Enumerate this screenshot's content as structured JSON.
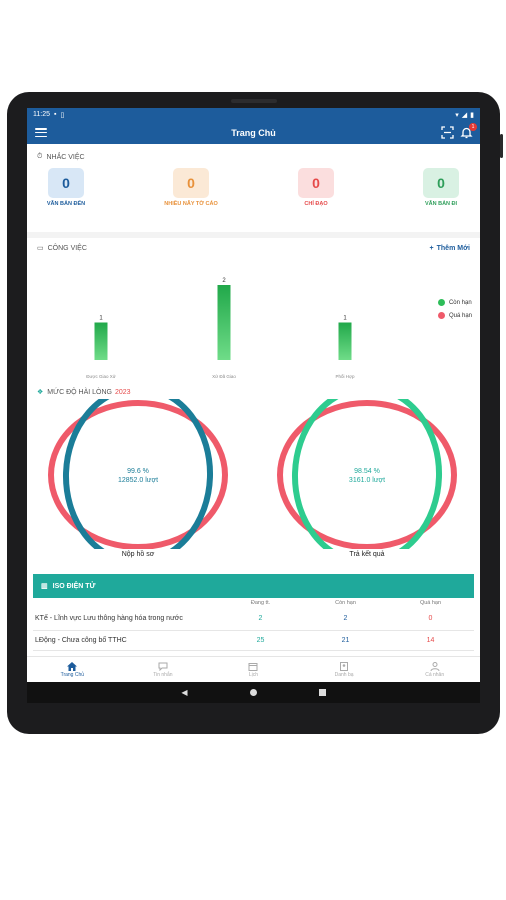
{
  "status": {
    "time": "11:25"
  },
  "appbar": {
    "title": "Trang Chủ",
    "badge": "1"
  },
  "reminders": {
    "title": "NHẮC VIỆC",
    "items": [
      {
        "count": "0",
        "label": "VĂN BẢN ĐẾN",
        "color": "#1d5c9c",
        "bg": "#d8e7f6"
      },
      {
        "count": "0",
        "label": "NHIỀU NĂY TỜ CÁO",
        "color": "#e8913a",
        "bg": "#fbe9d6"
      },
      {
        "count": "0",
        "label": "CHỈ ĐẠO",
        "color": "#e64a4a",
        "bg": "#fbdede"
      },
      {
        "count": "0",
        "label": "VĂN BẢN ĐI",
        "color": "#2e9e5a",
        "bg": "#d9f1e3"
      }
    ]
  },
  "work": {
    "title": "CÔNG VIỆC",
    "add_label": "Thêm Mới"
  },
  "chart_data": {
    "type": "bar",
    "categories": [
      "Được Giao Xử",
      "Xử Đã Giao",
      "Phối Hợp"
    ],
    "series": [
      {
        "name": "Còn hạn",
        "values": [
          1,
          2,
          1
        ]
      },
      {
        "name": "Quá hạn",
        "values": [
          0,
          0,
          0
        ]
      }
    ],
    "data_labels": [
      "1",
      "2",
      "1"
    ],
    "ylim": [
      0,
      2
    ],
    "legend": "right"
  },
  "satisfaction": {
    "title": "MỨC ĐỘ HÀI LÒNG",
    "year": "2023",
    "donuts": [
      {
        "percent": "99.6 %",
        "count": "12852.0 lượt",
        "caption": "Nộp hồ sơ",
        "share": 0.996,
        "color": "#1b7d98",
        "text_color": "#1b7d98"
      },
      {
        "percent": "98.54 %",
        "count": "3161.0 lượt",
        "caption": "Trả kết quả",
        "share": 0.9854,
        "color": "#2ecc8f",
        "text_color": "#1fa99b"
      }
    ]
  },
  "iso": {
    "title": "ISO ĐIỆN TỬ",
    "columns": [
      "Đang tt.",
      "Còn hạn",
      "Quá hạn"
    ],
    "rows": [
      {
        "name": "KTế - Lĩnh vực Lưu thông hàng hóa trong nước",
        "v1": "2",
        "v2": "2",
        "v3": "0"
      },
      {
        "name": "LĐộng - Chưa công bố TTHC",
        "v1": "25",
        "v2": "21",
        "v3": "14"
      }
    ]
  },
  "nav": [
    {
      "label": "Trang Chủ",
      "icon": "home-icon"
    },
    {
      "label": "Tin nhắn",
      "icon": "chat-icon"
    },
    {
      "label": "Lịch",
      "icon": "calendar-icon"
    },
    {
      "label": "Danh bạ",
      "icon": "contacts-icon"
    },
    {
      "label": "Cá nhân",
      "icon": "person-icon"
    }
  ]
}
